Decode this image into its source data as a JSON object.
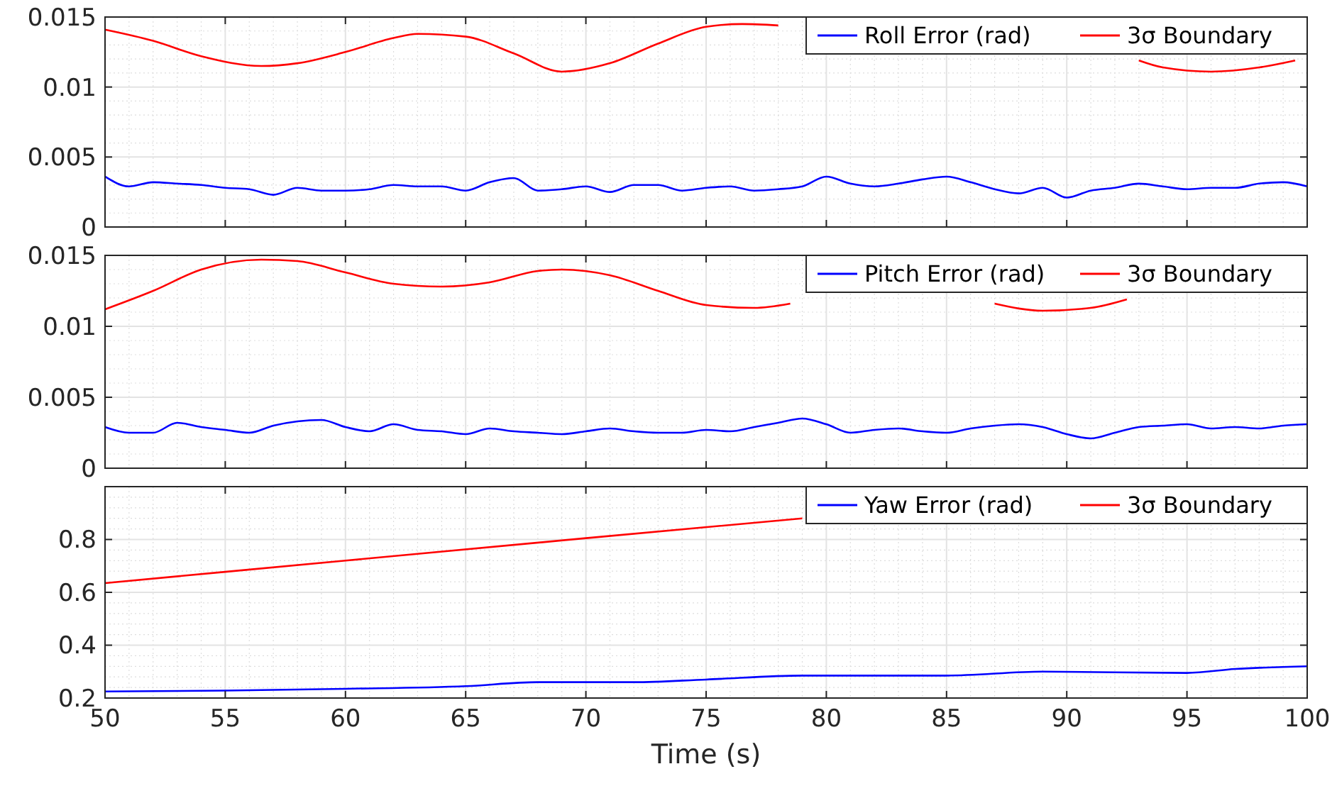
{
  "chart_data": [
    {
      "type": "line",
      "xlim": [
        50,
        100
      ],
      "xticks": [
        50,
        55,
        60,
        65,
        70,
        75,
        80,
        85,
        90,
        95,
        100
      ],
      "ylim": [
        0,
        0.015
      ],
      "yticks": [
        0,
        0.005,
        0.01,
        0.015
      ],
      "grid": true,
      "legend": "top right",
      "tick_labels": "y",
      "line_style": "solid",
      "x": [
        50,
        51,
        52,
        53,
        54,
        55,
        56,
        57,
        58,
        59,
        60,
        61,
        62,
        63,
        64,
        65,
        66,
        67,
        68,
        69,
        70,
        71,
        72,
        73,
        74,
        75,
        76,
        77,
        78,
        79,
        80,
        81,
        82,
        83,
        84,
        85,
        86,
        87,
        88,
        89,
        90,
        91,
        92,
        93,
        94,
        95,
        96,
        97,
        98,
        99,
        100
      ],
      "series": [
        {
          "name": "Roll Error (rad)",
          "color": "#0000ff",
          "values": [
            0.0036,
            0.0029,
            0.0032,
            0.0031,
            0.003,
            0.0028,
            0.0027,
            0.0023,
            0.0028,
            0.0026,
            0.0026,
            0.0027,
            0.003,
            0.0029,
            0.0029,
            0.0026,
            0.0032,
            0.0035,
            0.0026,
            0.0027,
            0.0029,
            0.0025,
            0.003,
            0.003,
            0.0026,
            0.0028,
            0.0029,
            0.0026,
            0.0027,
            0.0029,
            0.0036,
            0.0031,
            0.0029,
            0.0031,
            0.0034,
            0.0036,
            0.0032,
            0.0027,
            0.0024,
            0.0028,
            0.0021,
            0.0026,
            0.0028,
            0.0031,
            0.0029,
            0.0027,
            0.0028,
            0.0028,
            0.0031,
            0.0032,
            0.0029
          ]
        },
        {
          "name": "3σ Boundary",
          "color": "#ff0000",
          "x": [
            50,
            52,
            54,
            56.5,
            58,
            60,
            62,
            63,
            65,
            67,
            69,
            71,
            73,
            75,
            76.5,
            78,
            79,
            93,
            94,
            96,
            98,
            99.5
          ],
          "values": [
            0.0141,
            0.0133,
            0.0122,
            0.0115,
            0.0117,
            0.0125,
            0.0135,
            0.0138,
            0.0136,
            0.0124,
            0.0111,
            0.0117,
            0.0131,
            0.0143,
            0.0145,
            0.0144,
            null,
            0.0119,
            0.0114,
            0.0111,
            0.0114,
            0.0119
          ]
        }
      ]
    },
    {
      "type": "line",
      "xlim": [
        50,
        100
      ],
      "xticks": [
        50,
        55,
        60,
        65,
        70,
        75,
        80,
        85,
        90,
        95,
        100
      ],
      "ylim": [
        0,
        0.015
      ],
      "yticks": [
        0,
        0.005,
        0.01,
        0.015
      ],
      "grid": true,
      "legend": "top right",
      "tick_labels": "y",
      "line_style": "solid",
      "x": [
        50,
        51,
        52,
        53,
        54,
        55,
        56,
        57,
        58,
        59,
        60,
        61,
        62,
        63,
        64,
        65,
        66,
        67,
        68,
        69,
        70,
        71,
        72,
        73,
        74,
        75,
        76,
        77,
        78,
        79,
        80,
        81,
        82,
        83,
        84,
        85,
        86,
        87,
        88,
        89,
        90,
        91,
        92,
        93,
        94,
        95,
        96,
        97,
        98,
        99,
        100
      ],
      "series": [
        {
          "name": "Pitch Error (rad)",
          "color": "#0000ff",
          "values": [
            0.0029,
            0.0025,
            0.0025,
            0.0032,
            0.0029,
            0.0027,
            0.0025,
            0.003,
            0.0033,
            0.0034,
            0.0029,
            0.0026,
            0.0031,
            0.0027,
            0.0026,
            0.0024,
            0.0028,
            0.0026,
            0.0025,
            0.0024,
            0.0026,
            0.0028,
            0.0026,
            0.0025,
            0.0025,
            0.0027,
            0.0026,
            0.0029,
            0.0032,
            0.0035,
            0.0031,
            0.0025,
            0.0027,
            0.0028,
            0.0026,
            0.0025,
            0.0028,
            0.003,
            0.0031,
            0.0029,
            0.0024,
            0.0021,
            0.0025,
            0.0029,
            0.003,
            0.0031,
            0.0028,
            0.0029,
            0.0028,
            0.003,
            0.0031
          ]
        },
        {
          "name": "3σ Boundary",
          "color": "#ff0000",
          "x": [
            50,
            52,
            54,
            56.5,
            58,
            60,
            62,
            64,
            66,
            68,
            69,
            71,
            73,
            75,
            77,
            78.5,
            79,
            87,
            89,
            91,
            92.5
          ],
          "values": [
            0.0112,
            0.0125,
            0.014,
            0.0147,
            0.0146,
            0.0138,
            0.013,
            0.0128,
            0.0131,
            0.0139,
            0.014,
            0.0136,
            0.0125,
            0.0115,
            0.0113,
            0.0116,
            null,
            0.0116,
            0.0111,
            0.0113,
            0.0119
          ]
        }
      ]
    },
    {
      "type": "line",
      "xlim": [
        50,
        100
      ],
      "xticks": [
        50,
        55,
        60,
        65,
        70,
        75,
        80,
        85,
        90,
        95,
        100
      ],
      "ylim": [
        0.2,
        1
      ],
      "yticks": [
        0.2,
        0.4,
        0.6,
        0.8
      ],
      "grid": true,
      "legend": "top right",
      "xlabel": "Time (s)",
      "line_style": "solid",
      "x": [
        50,
        55,
        60,
        65,
        68,
        72,
        75,
        79,
        85,
        89,
        95,
        97,
        100
      ],
      "series": [
        {
          "name": "Yaw Error (rad)",
          "color": "#0000ff",
          "values": [
            0.225,
            0.228,
            0.235,
            0.245,
            0.26,
            0.26,
            0.27,
            0.285,
            0.285,
            0.3,
            0.295,
            0.31,
            0.32
          ]
        },
        {
          "name": "3σ Boundary",
          "color": "#ff0000",
          "x": [
            50,
            60,
            70,
            79
          ],
          "values": [
            0.635,
            0.72,
            0.805,
            0.88
          ]
        }
      ]
    }
  ]
}
